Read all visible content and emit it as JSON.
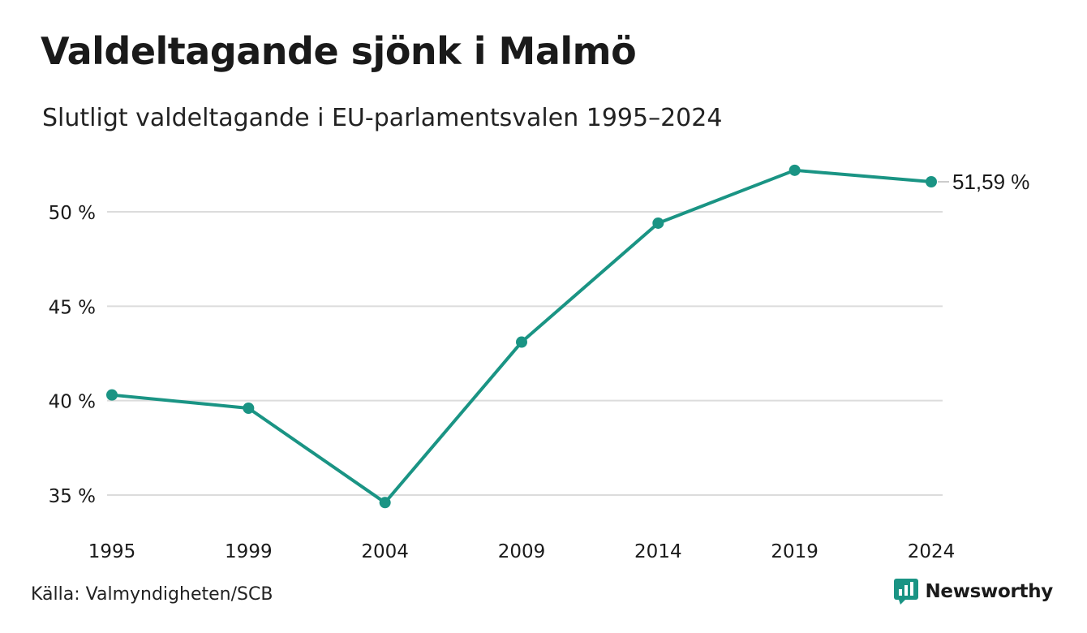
{
  "header": {
    "title": "Valdeltagande sjönk i Malmö",
    "subtitle": "Slutligt valdeltagande i EU-parlamentsvalen 1995–2024"
  },
  "footer": {
    "source": "Källa: Valmyndigheten/SCB",
    "brand_name": "Newsworthy",
    "brand_icon": "newsworthy-logo-icon"
  },
  "colors": {
    "series": "#1a9484",
    "grid": "#dcdcdc",
    "text": "#1a1a1a"
  },
  "chart_data": {
    "type": "line",
    "title": "",
    "xlabel": "",
    "ylabel": "",
    "x": [
      "1995",
      "1999",
      "2004",
      "2009",
      "2014",
      "2019",
      "2024"
    ],
    "series": [
      {
        "values": [
          40.3,
          39.6,
          34.6,
          43.1,
          49.4,
          52.2,
          51.59
        ]
      }
    ],
    "yticks": [
      35,
      40,
      45,
      50
    ],
    "ytick_labels": [
      "35 %",
      "40 %",
      "45 %",
      "50 %"
    ],
    "ylim": [
      32.5,
      53.5
    ],
    "grid": true,
    "legend": "none",
    "end_label": "51,59 %"
  }
}
